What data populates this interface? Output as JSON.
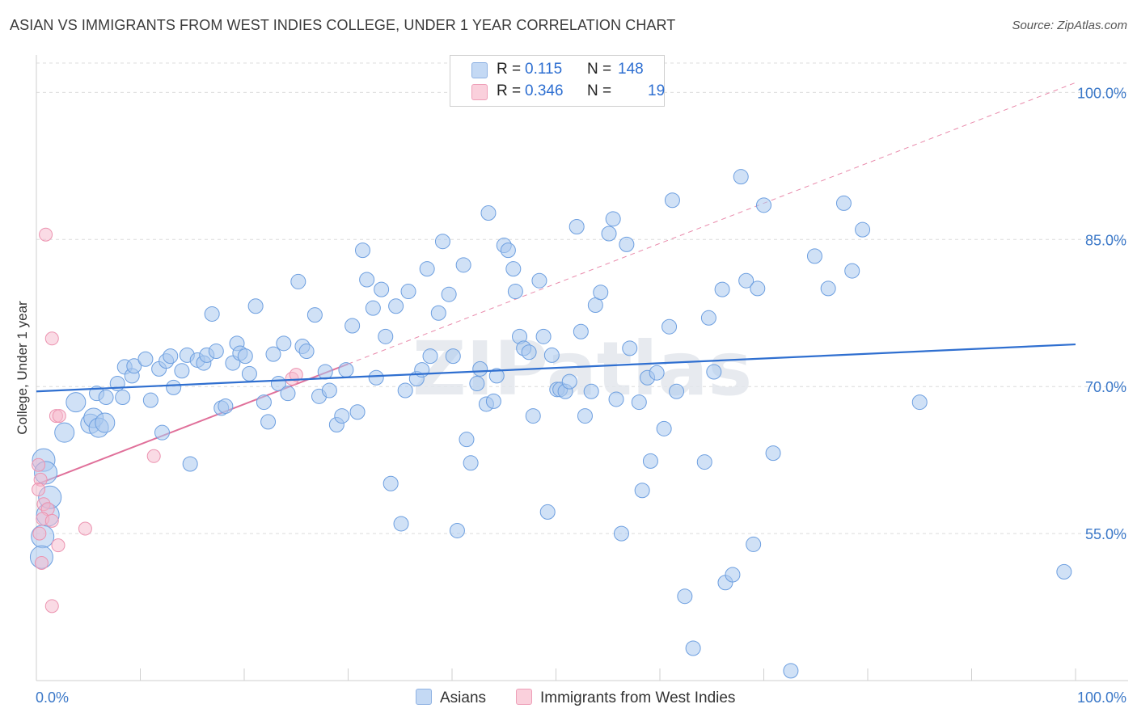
{
  "title": "ASIAN VS IMMIGRANTS FROM WEST INDIES COLLEGE, UNDER 1 YEAR CORRELATION CHART",
  "source": "Source: ZipAtlas.com",
  "watermark": "ZIPatlas",
  "legend": {
    "r_label": "R =",
    "n_label": "N =",
    "rows": [
      {
        "r": "0.115",
        "n": "148",
        "color": "#aac8ef"
      },
      {
        "r": "0.346",
        "n": "19",
        "color": "#f6b8cb"
      }
    ]
  },
  "bottom_legend": [
    {
      "label": "Asians",
      "color": "#aac8ef"
    },
    {
      "label": "Immigrants from West Indies",
      "color": "#f6b8cb"
    }
  ],
  "chart_data": {
    "type": "scatter",
    "title": "ASIAN VS IMMIGRANTS FROM WEST INDIES COLLEGE, UNDER 1 YEAR CORRELATION CHART",
    "xlabel": "",
    "ylabel": "College, Under 1 year",
    "xlim": [
      0,
      100
    ],
    "ylim": [
      40,
      103
    ],
    "x_tick_labels": [
      "0.0%",
      "100.0%"
    ],
    "y_ticks": [
      55,
      70,
      85,
      100
    ],
    "y_tick_labels": [
      "55.0%",
      "70.0%",
      "85.0%",
      "100.0%"
    ],
    "grid": "horizontal dashed",
    "legend_position": "top-center",
    "colors": {
      "asians": "#3c78d8",
      "west_indies": "#e0709a"
    },
    "series": [
      {
        "name": "Asians",
        "r": 0.115,
        "n": 148,
        "trend": {
          "x": [
            0,
            100
          ],
          "y": [
            69.5,
            74.3
          ]
        },
        "points": [
          [
            2.7,
            65.3
          ],
          [
            3.8,
            68.4
          ],
          [
            5.2,
            66.2
          ],
          [
            5.5,
            66.8
          ],
          [
            6.0,
            65.8
          ],
          [
            6.6,
            66.3
          ],
          [
            5.8,
            69.3
          ],
          [
            6.7,
            68.9
          ],
          [
            8.3,
            68.9
          ],
          [
            7.8,
            70.3
          ],
          [
            8.5,
            72.0
          ],
          [
            9.2,
            71.1
          ],
          [
            9.4,
            72.1
          ],
          [
            10.5,
            72.8
          ],
          [
            11.0,
            68.6
          ],
          [
            11.8,
            71.8
          ],
          [
            12.1,
            65.3
          ],
          [
            12.5,
            72.6
          ],
          [
            12.9,
            73.1
          ],
          [
            13.2,
            69.9
          ],
          [
            14.0,
            71.6
          ],
          [
            14.5,
            73.2
          ],
          [
            14.8,
            62.1
          ],
          [
            15.5,
            72.7
          ],
          [
            16.1,
            72.4
          ],
          [
            16.4,
            73.2
          ],
          [
            16.9,
            77.4
          ],
          [
            17.3,
            73.6
          ],
          [
            17.8,
            67.8
          ],
          [
            18.2,
            68.0
          ],
          [
            18.9,
            72.4
          ],
          [
            19.3,
            74.4
          ],
          [
            19.6,
            73.4
          ],
          [
            20.1,
            73.1
          ],
          [
            20.5,
            71.3
          ],
          [
            21.1,
            78.2
          ],
          [
            21.9,
            68.4
          ],
          [
            22.3,
            66.4
          ],
          [
            22.8,
            73.3
          ],
          [
            23.3,
            70.3
          ],
          [
            23.8,
            74.4
          ],
          [
            24.2,
            69.3
          ],
          [
            25.2,
            80.7
          ],
          [
            25.6,
            74.1
          ],
          [
            26.0,
            73.6
          ],
          [
            26.8,
            77.3
          ],
          [
            27.2,
            69.0
          ],
          [
            27.8,
            71.5
          ],
          [
            28.2,
            69.6
          ],
          [
            28.9,
            66.1
          ],
          [
            29.4,
            67.0
          ],
          [
            29.8,
            71.7
          ],
          [
            30.4,
            76.2
          ],
          [
            30.9,
            67.4
          ],
          [
            31.4,
            83.9
          ],
          [
            31.8,
            80.9
          ],
          [
            32.4,
            78.0
          ],
          [
            32.7,
            70.9
          ],
          [
            33.2,
            79.9
          ],
          [
            33.6,
            75.1
          ],
          [
            34.1,
            60.1
          ],
          [
            34.6,
            78.2
          ],
          [
            35.1,
            56.0
          ],
          [
            35.5,
            69.6
          ],
          [
            35.8,
            79.7
          ],
          [
            36.6,
            70.8
          ],
          [
            37.1,
            71.7
          ],
          [
            37.6,
            82.0
          ],
          [
            37.9,
            73.1
          ],
          [
            38.7,
            77.5
          ],
          [
            39.1,
            84.8
          ],
          [
            39.7,
            79.4
          ],
          [
            40.1,
            73.1
          ],
          [
            40.5,
            55.3
          ],
          [
            41.1,
            82.4
          ],
          [
            41.4,
            64.6
          ],
          [
            41.8,
            62.2
          ],
          [
            42.4,
            70.3
          ],
          [
            42.7,
            71.8
          ],
          [
            43.3,
            68.2
          ],
          [
            43.5,
            87.7
          ],
          [
            44.0,
            68.5
          ],
          [
            44.3,
            71.1
          ],
          [
            45.0,
            84.4
          ],
          [
            45.4,
            83.9
          ],
          [
            45.9,
            82.0
          ],
          [
            46.1,
            79.7
          ],
          [
            46.5,
            75.1
          ],
          [
            46.9,
            73.9
          ],
          [
            47.4,
            73.5
          ],
          [
            47.8,
            67.0
          ],
          [
            48.4,
            80.8
          ],
          [
            48.8,
            75.1
          ],
          [
            49.2,
            57.2
          ],
          [
            49.6,
            73.2
          ],
          [
            50.1,
            69.7
          ],
          [
            50.4,
            69.7
          ],
          [
            50.9,
            69.5
          ],
          [
            51.3,
            70.5
          ],
          [
            52.0,
            86.3
          ],
          [
            52.4,
            75.6
          ],
          [
            52.8,
            67.0
          ],
          [
            53.4,
            69.5
          ],
          [
            53.8,
            78.3
          ],
          [
            54.3,
            79.6
          ],
          [
            55.1,
            85.6
          ],
          [
            55.5,
            87.1
          ],
          [
            55.8,
            68.7
          ],
          [
            56.3,
            55.0
          ],
          [
            56.8,
            84.5
          ],
          [
            57.1,
            73.9
          ],
          [
            58.0,
            68.4
          ],
          [
            58.3,
            59.4
          ],
          [
            58.8,
            70.9
          ],
          [
            59.1,
            62.4
          ],
          [
            59.7,
            71.4
          ],
          [
            60.4,
            65.7
          ],
          [
            60.9,
            76.1
          ],
          [
            61.2,
            89.0
          ],
          [
            61.6,
            69.5
          ],
          [
            62.4,
            48.6
          ],
          [
            63.2,
            43.3
          ],
          [
            64.3,
            62.3
          ],
          [
            64.7,
            77.0
          ],
          [
            65.2,
            71.5
          ],
          [
            66.0,
            79.9
          ],
          [
            66.3,
            50.0
          ],
          [
            67.0,
            50.8
          ],
          [
            67.8,
            91.4
          ],
          [
            68.3,
            80.8
          ],
          [
            69.0,
            53.9
          ],
          [
            69.4,
            80.0
          ],
          [
            70.0,
            88.5
          ],
          [
            70.9,
            63.2
          ],
          [
            72.6,
            41.0
          ],
          [
            74.9,
            83.3
          ],
          [
            76.2,
            80.0
          ],
          [
            77.7,
            88.7
          ],
          [
            78.5,
            81.8
          ],
          [
            79.5,
            86.0
          ],
          [
            85.0,
            68.4
          ],
          [
            98.9,
            51.1
          ],
          [
            0.6,
            54.7
          ],
          [
            0.5,
            52.6
          ],
          [
            0.7,
            62.5
          ],
          [
            0.9,
            61.2
          ],
          [
            1.1,
            56.9
          ],
          [
            1.3,
            58.7
          ]
        ]
      },
      {
        "name": "Immigrants from West Indies",
        "r": 0.346,
        "n": 19,
        "trend": {
          "x": [
            0,
            30
          ],
          "y": [
            60.0,
            72.3
          ]
        },
        "trend_extended": {
          "x": [
            30,
            100
          ],
          "y": [
            72.3,
            101
          ]
        },
        "points": [
          [
            0.9,
            85.5
          ],
          [
            1.5,
            74.9
          ],
          [
            1.9,
            67.0
          ],
          [
            2.2,
            67.0
          ],
          [
            0.2,
            62.0
          ],
          [
            0.4,
            60.5
          ],
          [
            0.7,
            58.0
          ],
          [
            1.1,
            57.5
          ],
          [
            0.6,
            56.5
          ],
          [
            1.5,
            56.3
          ],
          [
            0.3,
            55.0
          ],
          [
            4.7,
            55.5
          ],
          [
            2.1,
            53.8
          ],
          [
            0.5,
            52.0
          ],
          [
            1.5,
            47.6
          ],
          [
            11.3,
            62.9
          ],
          [
            24.6,
            70.8
          ],
          [
            25.0,
            71.2
          ],
          [
            0.2,
            59.5
          ]
        ]
      }
    ]
  }
}
